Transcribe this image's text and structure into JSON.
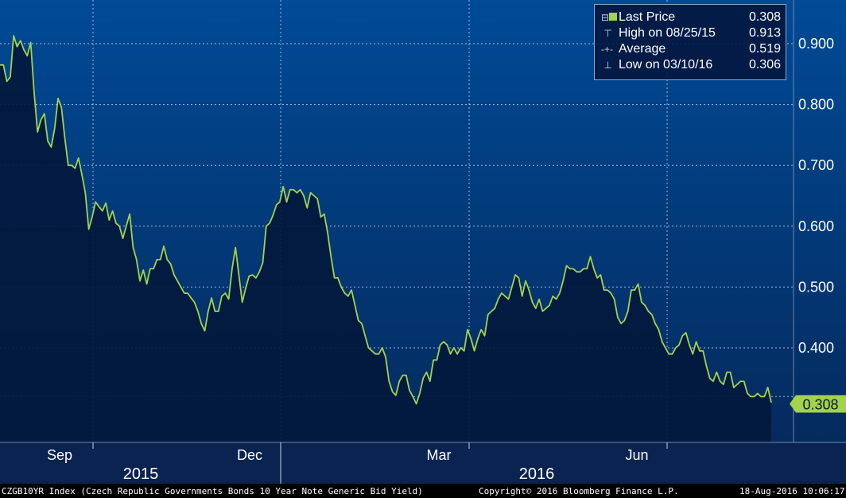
{
  "colors": {
    "bg_top": "#004a96",
    "bg_bottom": "#052a5e",
    "fill": "#03193d",
    "line": "#a3d24b",
    "grid": "#dfe6f0",
    "text": "#ffffff",
    "last_price_badge": "#a3d24b"
  },
  "legend": {
    "rows": [
      {
        "icon": "last-price-icon",
        "label": "Last Price",
        "value": "0.308"
      },
      {
        "icon": "high-marker-icon",
        "label": "High on 08/25/15",
        "value": "0.913"
      },
      {
        "icon": "average-marker-icon",
        "label": "Average",
        "value": "0.519"
      },
      {
        "icon": "low-marker-icon",
        "label": "Low on 03/10/16",
        "value": "0.306"
      }
    ]
  },
  "last_price_badge": "0.308",
  "footer": {
    "left": "CZGB10YR Index (Czech Republic Governments Bonds 10 Year Note Generic Bid Yield)",
    "center": "Copyright© 2016 Bloomberg Finance L.P.",
    "right": "18-Aug-2016 10:06:17"
  },
  "chart_data": {
    "type": "area",
    "ylim": [
      0.25,
      0.95
    ],
    "yticks": [
      0.4,
      0.5,
      0.6,
      0.7,
      0.8,
      0.9
    ],
    "ytick_labels": [
      "0.400",
      "0.500",
      "0.600",
      "0.700",
      "0.800",
      "0.900"
    ],
    "months": [
      "Sep",
      "Dec",
      "Mar",
      "Jun"
    ],
    "years": [
      "2015",
      "2016"
    ],
    "grid": true,
    "legend_position": "top-right",
    "values": [
      0.865,
      0.865,
      0.838,
      0.845,
      0.913,
      0.895,
      0.905,
      0.89,
      0.88,
      0.902,
      0.82,
      0.755,
      0.775,
      0.785,
      0.74,
      0.73,
      0.76,
      0.81,
      0.795,
      0.745,
      0.7,
      0.7,
      0.695,
      0.712,
      0.685,
      0.655,
      0.595,
      0.615,
      0.64,
      0.632,
      0.625,
      0.638,
      0.61,
      0.625,
      0.605,
      0.6,
      0.58,
      0.6,
      0.62,
      0.565,
      0.545,
      0.51,
      0.528,
      0.505,
      0.53,
      0.53,
      0.545,
      0.545,
      0.567,
      0.545,
      0.538,
      0.52,
      0.51,
      0.5,
      0.49,
      0.49,
      0.482,
      0.475,
      0.46,
      0.44,
      0.428,
      0.46,
      0.482,
      0.46,
      0.46,
      0.485,
      0.49,
      0.48,
      0.53,
      0.565,
      0.52,
      0.475,
      0.498,
      0.518,
      0.52,
      0.515,
      0.525,
      0.54,
      0.6,
      0.605,
      0.618,
      0.635,
      0.64,
      0.665,
      0.64,
      0.66,
      0.66,
      0.655,
      0.66,
      0.65,
      0.63,
      0.655,
      0.65,
      0.645,
      0.615,
      0.62,
      0.59,
      0.55,
      0.515,
      0.515,
      0.5,
      0.49,
      0.485,
      0.495,
      0.47,
      0.445,
      0.44,
      0.42,
      0.4,
      0.395,
      0.39,
      0.39,
      0.4,
      0.385,
      0.345,
      0.328,
      0.322,
      0.345,
      0.355,
      0.355,
      0.33,
      0.32,
      0.308,
      0.325,
      0.35,
      0.36,
      0.345,
      0.38,
      0.38,
      0.405,
      0.41,
      0.405,
      0.39,
      0.4,
      0.39,
      0.4,
      0.395,
      0.43,
      0.415,
      0.395,
      0.415,
      0.43,
      0.42,
      0.455,
      0.46,
      0.465,
      0.48,
      0.49,
      0.485,
      0.48,
      0.5,
      0.52,
      0.515,
      0.485,
      0.51,
      0.495,
      0.475,
      0.465,
      0.48,
      0.46,
      0.465,
      0.47,
      0.485,
      0.48,
      0.49,
      0.51,
      0.535,
      0.53,
      0.53,
      0.525,
      0.525,
      0.53,
      0.53,
      0.55,
      0.53,
      0.515,
      0.52,
      0.495,
      0.495,
      0.49,
      0.48,
      0.45,
      0.44,
      0.445,
      0.46,
      0.495,
      0.495,
      0.505,
      0.475,
      0.47,
      0.46,
      0.455,
      0.44,
      0.43,
      0.41,
      0.4,
      0.39,
      0.39,
      0.4,
      0.405,
      0.42,
      0.425,
      0.405,
      0.39,
      0.41,
      0.395,
      0.395,
      0.37,
      0.35,
      0.345,
      0.36,
      0.345,
      0.34,
      0.36,
      0.36,
      0.335,
      0.34,
      0.345,
      0.345,
      0.325,
      0.32,
      0.32,
      0.325,
      0.32,
      0.32,
      0.335,
      0.31
    ]
  }
}
